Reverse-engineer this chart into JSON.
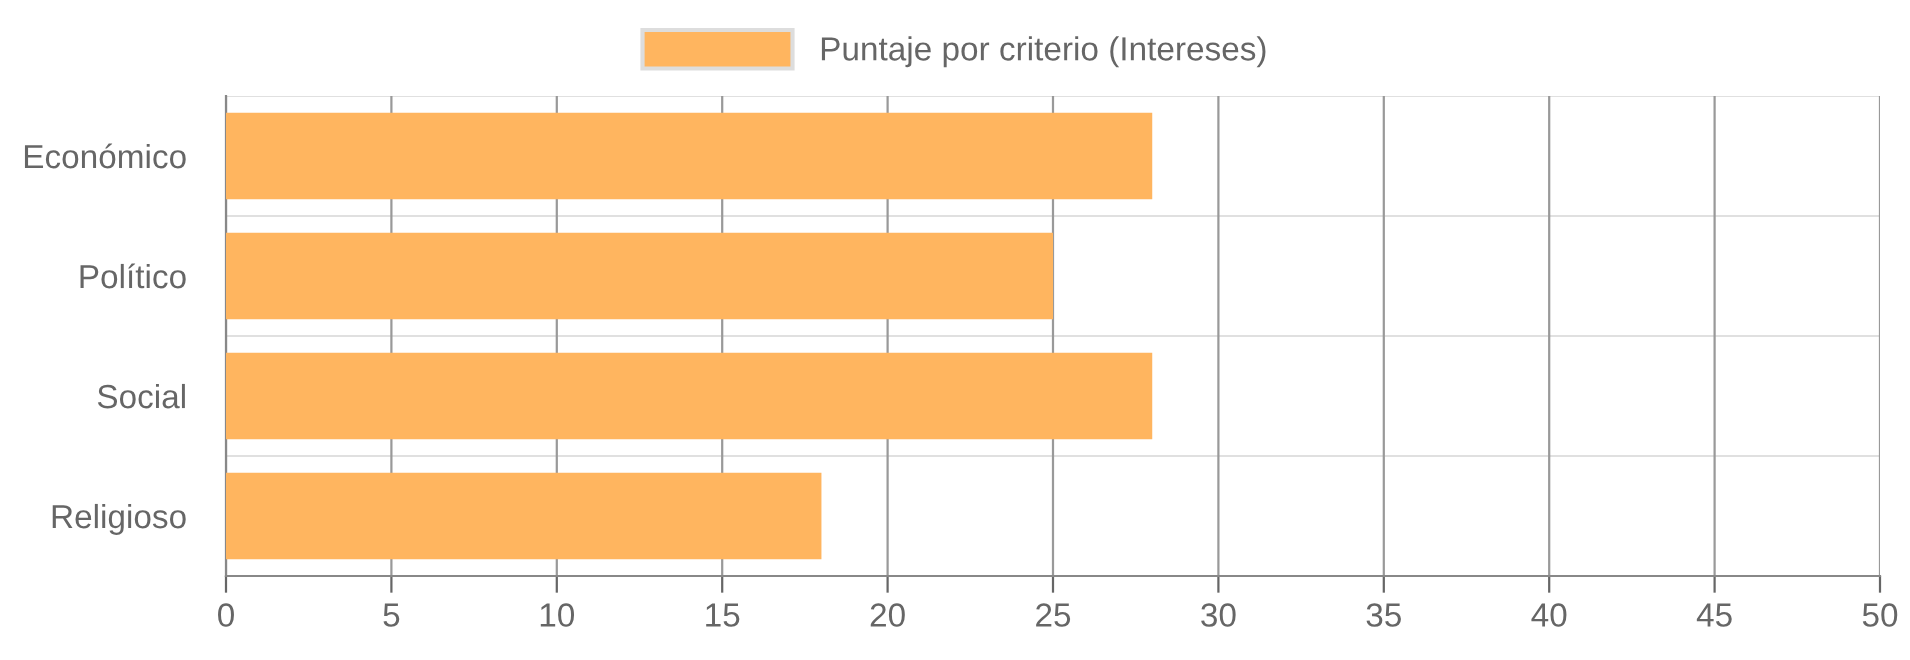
{
  "chart_data": {
    "type": "bar",
    "orientation": "horizontal",
    "categories": [
      "Económico",
      "Político",
      "Social",
      "Religioso"
    ],
    "series": [
      {
        "name": "Puntaje por criterio (Intereses)",
        "color": "#ffb55f",
        "values": [
          28,
          25,
          28,
          18
        ]
      }
    ],
    "xlim": [
      0,
      50
    ],
    "xticks": [
      0,
      5,
      10,
      15,
      20,
      25,
      30,
      35,
      40,
      45,
      50
    ],
    "grid": true,
    "legend": "top"
  }
}
